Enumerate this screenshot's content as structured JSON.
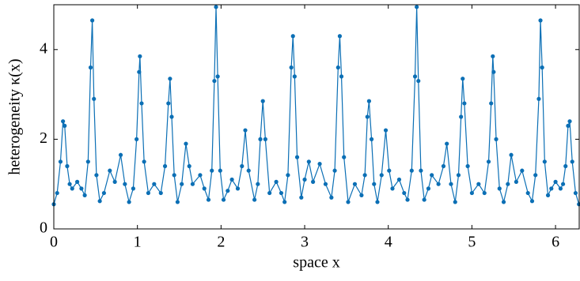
{
  "chart_data": {
    "type": "line",
    "xlabel": "space x",
    "ylabel": "heterogeneity κ(x)",
    "xlim": [
      0,
      6.2832
    ],
    "ylim": [
      0,
      5
    ],
    "xticks": [
      0,
      1,
      2,
      3,
      4,
      5,
      6
    ],
    "yticks": [
      0,
      2,
      4
    ],
    "series": [
      {
        "color": "#0b6fb5",
        "x": [
          0,
          0.04,
          0.08,
          0.11,
          0.13,
          0.16,
          0.19,
          0.22,
          0.28,
          0.33,
          0.37,
          0.41,
          0.44,
          0.46,
          0.48,
          0.51,
          0.55,
          0.6,
          0.67,
          0.73,
          0.8,
          0.85,
          0.9,
          0.95,
          0.99,
          1.02,
          1.03,
          1.05,
          1.08,
          1.13,
          1.2,
          1.28,
          1.33,
          1.37,
          1.39,
          1.41,
          1.44,
          1.48,
          1.53,
          1.58,
          1.62,
          1.66,
          1.75,
          1.8,
          1.85,
          1.89,
          1.92,
          1.94,
          1.96,
          1.99,
          2.03,
          2.08,
          2.13,
          2.2,
          2.25,
          2.29,
          2.33,
          2.4,
          2.44,
          2.47,
          2.5,
          2.53,
          2.58,
          2.66,
          2.72,
          2.76,
          2.8,
          2.84,
          2.86,
          2.88,
          2.91,
          2.96,
          3.0,
          3.05,
          3.1,
          3.18,
          3.25,
          3.32,
          3.36,
          3.4,
          3.42,
          3.44,
          3.47,
          3.52,
          3.6,
          3.68,
          3.72,
          3.75,
          3.77,
          3.8,
          3.83,
          3.87,
          3.92,
          3.97,
          4.01,
          4.05,
          4.13,
          4.19,
          4.23,
          4.28,
          4.32,
          4.34,
          4.36,
          4.39,
          4.43,
          4.48,
          4.52,
          4.6,
          4.66,
          4.7,
          4.75,
          4.8,
          4.84,
          4.87,
          4.89,
          4.91,
          4.95,
          5.0,
          5.08,
          5.15,
          5.2,
          5.23,
          5.25,
          5.26,
          5.29,
          5.33,
          5.38,
          5.43,
          5.47,
          5.53,
          5.6,
          5.67,
          5.72,
          5.76,
          5.8,
          5.82,
          5.84,
          5.87,
          5.91,
          5.95,
          6.0,
          6.06,
          6.09,
          6.12,
          6.15,
          6.17,
          6.2,
          6.24,
          6.28
        ],
        "values": [
          0.55,
          0.8,
          1.5,
          2.4,
          2.3,
          1.4,
          1.0,
          0.9,
          1.05,
          0.9,
          0.75,
          1.5,
          3.6,
          4.65,
          2.9,
          1.2,
          0.62,
          0.8,
          1.3,
          1.05,
          1.65,
          1.0,
          0.6,
          0.9,
          2.0,
          3.5,
          3.85,
          2.8,
          1.5,
          0.8,
          1.0,
          0.8,
          1.4,
          2.8,
          3.35,
          2.5,
          1.2,
          0.6,
          1.0,
          1.9,
          1.4,
          1.0,
          1.2,
          0.9,
          0.65,
          1.3,
          3.3,
          4.95,
          3.4,
          1.3,
          0.65,
          0.85,
          1.1,
          0.9,
          1.4,
          2.2,
          1.3,
          0.65,
          1.0,
          2.0,
          2.85,
          2.0,
          0.8,
          1.05,
          0.8,
          0.6,
          1.2,
          3.6,
          4.3,
          3.4,
          1.6,
          0.7,
          1.1,
          1.5,
          1.05,
          1.45,
          1.0,
          0.7,
          1.3,
          3.6,
          4.3,
          3.4,
          1.6,
          0.6,
          1.0,
          0.75,
          1.2,
          2.5,
          2.85,
          2.0,
          1.0,
          0.6,
          1.2,
          2.2,
          1.3,
          0.9,
          1.1,
          0.8,
          0.65,
          1.3,
          3.4,
          4.95,
          3.3,
          1.3,
          0.65,
          0.9,
          1.2,
          1.0,
          1.4,
          1.9,
          1.0,
          0.6,
          1.2,
          2.5,
          3.35,
          2.8,
          1.4,
          0.8,
          1.0,
          0.8,
          1.5,
          2.8,
          3.85,
          3.5,
          2.0,
          0.9,
          0.6,
          1.0,
          1.65,
          1.05,
          1.3,
          0.8,
          0.62,
          1.2,
          2.9,
          4.65,
          3.6,
          1.5,
          0.75,
          0.9,
          1.05,
          0.9,
          1.0,
          1.4,
          2.3,
          2.4,
          1.5,
          0.8,
          0.55
        ]
      }
    ]
  }
}
